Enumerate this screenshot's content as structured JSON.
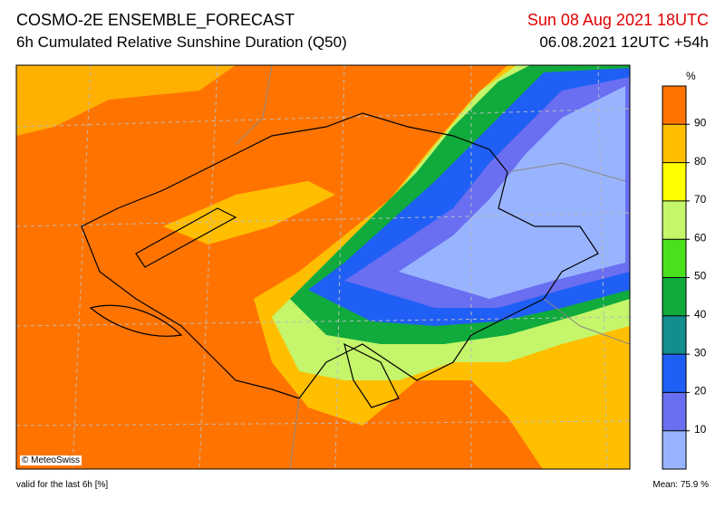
{
  "header": {
    "title": "COSMO-2E ENSEMBLE_FORECAST",
    "subtitle": "6h Cumulated Relative Sunshine Duration (Q50)",
    "valid_time": "Sun 08 Aug 2021 18UTC",
    "run": "06.08.2021 12UTC +54h"
  },
  "legend": {
    "unit": "%",
    "ticks": [
      10,
      20,
      30,
      40,
      50,
      60,
      70,
      80,
      90
    ],
    "range": [
      0,
      100
    ],
    "colors": [
      "#99b4ff",
      "#6a6ef0",
      "#1f5ff5",
      "#138d8d",
      "#10ab3c",
      "#4be01e",
      "#c4f56a",
      "#ffff00",
      "#ffbf00",
      "#ff7400"
    ]
  },
  "footer": {
    "copyright": "© MeteoSwiss",
    "note": "valid for the last 6h [%]",
    "mean": "Mean:  75.9 %"
  }
}
